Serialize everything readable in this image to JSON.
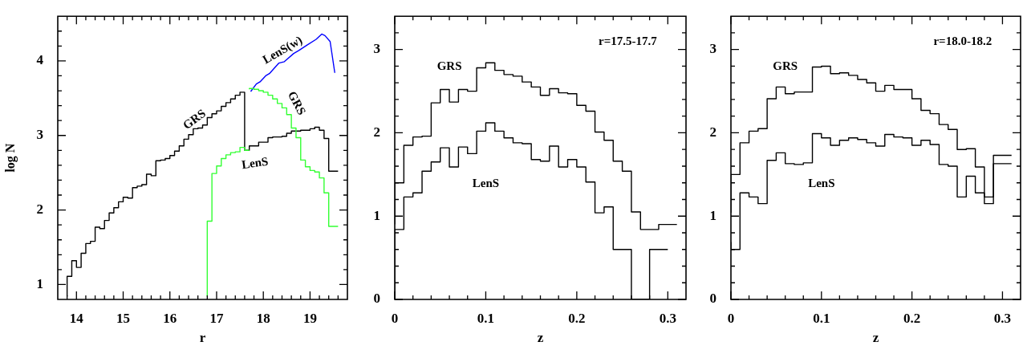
{
  "chart_data": [
    {
      "type": "step",
      "xlabel": "r",
      "ylabel": "log N",
      "xlim": [
        13.6,
        19.8
      ],
      "ylim": [
        0.8,
        4.6
      ],
      "xticks": [
        {
          "value": 13.8,
          "label": null
        },
        14,
        {
          "value": 14.2,
          "label": null
        },
        {
          "value": 14.4,
          "label": null
        },
        {
          "value": 14.6,
          "label": null
        },
        {
          "value": 14.8,
          "label": null
        },
        15,
        {
          "value": 15.2,
          "label": null
        },
        {
          "value": 15.4,
          "label": null
        },
        {
          "value": 15.6,
          "label": null
        },
        {
          "value": 15.8,
          "label": null
        },
        16,
        {
          "value": 16.2,
          "label": null
        },
        {
          "value": 16.4,
          "label": null
        },
        {
          "value": 16.6,
          "label": null
        },
        {
          "value": 16.8,
          "label": null
        },
        17,
        {
          "value": 17.2,
          "label": null
        },
        {
          "value": 17.4,
          "label": null
        },
        {
          "value": 17.6,
          "label": null
        },
        {
          "value": 17.8,
          "label": null
        },
        18,
        {
          "value": 18.2,
          "label": null
        },
        {
          "value": 18.4,
          "label": null
        },
        {
          "value": 18.6,
          "label": null
        },
        {
          "value": 18.8,
          "label": null
        },
        19,
        {
          "value": 19.2,
          "label": null
        },
        {
          "value": 19.4,
          "label": null
        },
        {
          "value": 19.6,
          "label": null
        }
      ],
      "yticks": [
        1,
        {
          "value": 1.2,
          "label": null
        },
        {
          "value": 1.4,
          "label": null
        },
        {
          "value": 1.6,
          "label": null
        },
        {
          "value": 1.8,
          "label": null
        },
        2,
        {
          "value": 2.2,
          "label": null
        },
        {
          "value": 2.4,
          "label": null
        },
        {
          "value": 2.6,
          "label": null
        },
        {
          "value": 2.8,
          "label": null
        },
        3,
        {
          "value": 3.2,
          "label": null
        },
        {
          "value": 3.4,
          "label": null
        },
        {
          "value": 3.6,
          "label": null
        },
        {
          "value": 3.8,
          "label": null
        },
        4,
        {
          "value": 4.2,
          "label": null
        },
        {
          "value": 4.4,
          "label": null
        }
      ],
      "series": [
        {
          "color": "#33ff33",
          "x": [
            17.7,
            17.8,
            17.9,
            18.0,
            18.1,
            18.2,
            18.3,
            18.4,
            18.5,
            18.6,
            18.7,
            18.8,
            18.9,
            19.0,
            19.1,
            19.2,
            19.3,
            19.4,
            19.5,
            19.6
          ],
          "values": [
            3.62,
            3.63,
            3.62,
            3.6,
            3.58,
            3.54,
            3.49,
            3.43,
            3.37,
            3.28,
            3.1,
            2.97,
            2.67,
            2.58,
            2.53,
            2.51,
            2.43,
            2.23,
            1.78,
            1.78
          ]
        },
        {
          "color": "#33ff33",
          "x": [
            16.8,
            16.9,
            17.0,
            17.1,
            17.2,
            17.3,
            17.4,
            17.5,
            17.6,
            17.7
          ],
          "values": [
            0.84,
            1.85,
            2.49,
            2.59,
            2.69,
            2.74,
            2.77,
            2.78,
            2.84,
            2.8
          ]
        },
        {
          "color": "#000000",
          "x": [
            13.8,
            13.9,
            14.0,
            14.1,
            14.2,
            14.3,
            14.4,
            14.5,
            14.6,
            14.7,
            14.8,
            14.9,
            15.0,
            15.1,
            15.2,
            15.3,
            15.4,
            15.5,
            15.6,
            15.7,
            15.8,
            15.9,
            16.0,
            16.1,
            16.2,
            16.3,
            16.4,
            16.5,
            16.6,
            16.7,
            16.8,
            16.9,
            17.0,
            17.1,
            17.2,
            17.3,
            17.4,
            17.5,
            17.6,
            17.7,
            17.8,
            17.9,
            18.0,
            18.1,
            18.2,
            18.3,
            18.4,
            18.5,
            18.6,
            18.7,
            18.8,
            18.9,
            19.0,
            19.1,
            19.2,
            19.3,
            19.4,
            19.5,
            19.6
          ],
          "values": [
            0.84,
            1.11,
            1.32,
            1.23,
            1.42,
            1.55,
            1.58,
            1.77,
            1.75,
            1.86,
            1.96,
            2.03,
            2.11,
            2.17,
            2.16,
            2.3,
            2.32,
            2.34,
            2.48,
            2.46,
            2.66,
            2.67,
            2.69,
            2.73,
            2.79,
            2.86,
            2.95,
            3.01,
            3.09,
            3.1,
            3.14,
            3.24,
            3.29,
            3.33,
            3.39,
            3.44,
            3.49,
            3.54,
            3.58,
            2.8,
            2.86,
            2.86,
            2.91,
            2.91,
            2.97,
            2.98,
            2.98,
            2.99,
            3.03,
            3.06,
            3.06,
            3.07,
            3.07,
            3.09,
            3.11,
            3.07,
            2.96,
            2.52,
            2.52
          ]
        },
        {
          "type": "line",
          "color": "#0000ff",
          "x": [
            17.73,
            17.85,
            17.93,
            18.05,
            18.13,
            18.33,
            18.45,
            18.65,
            18.76,
            18.93,
            19.13,
            19.25,
            19.32,
            19.43,
            19.53
          ],
          "values": [
            3.59,
            3.69,
            3.72,
            3.8,
            3.83,
            3.97,
            3.99,
            4.1,
            4.14,
            4.21,
            4.29,
            4.36,
            4.34,
            4.26,
            3.84
          ]
        }
      ],
      "annotations": [
        "GRS",
        "LenS(w)",
        "GRS",
        "LenS"
      ]
    },
    {
      "type": "step",
      "xlabel": "z",
      "xlim": [
        0,
        0.32
      ],
      "ylim": [
        0,
        3.4
      ],
      "xticks": [
        0,
        {
          "value": 0.02,
          "label": null
        },
        {
          "value": 0.04,
          "label": null
        },
        {
          "value": 0.06,
          "label": null
        },
        {
          "value": 0.08,
          "label": null
        },
        0.1,
        {
          "value": 0.12,
          "label": null
        },
        {
          "value": 0.14,
          "label": null
        },
        {
          "value": 0.16,
          "label": null
        },
        {
          "value": 0.18,
          "label": null
        },
        0.2,
        {
          "value": 0.22,
          "label": null
        },
        {
          "value": 0.24,
          "label": null
        },
        {
          "value": 0.26,
          "label": null
        },
        {
          "value": 0.28,
          "label": null
        },
        0.3
      ],
      "yticks": [
        0,
        {
          "value": 0.2,
          "label": null
        },
        {
          "value": 0.4,
          "label": null
        },
        {
          "value": 0.6,
          "label": null
        },
        {
          "value": 0.8,
          "label": null
        },
        1,
        {
          "value": 1.2,
          "label": null
        },
        {
          "value": 1.4,
          "label": null
        },
        {
          "value": 1.6,
          "label": null
        },
        {
          "value": 1.8,
          "label": null
        },
        2,
        {
          "value": 2.2,
          "label": null
        },
        {
          "value": 2.4,
          "label": null
        },
        {
          "value": 2.6,
          "label": null
        },
        {
          "value": 2.8,
          "label": null
        },
        3,
        {
          "value": 3.2,
          "label": null
        }
      ],
      "series": [
        {
          "color": "#000000",
          "x": [
            0,
            0.01,
            0.02,
            0.03,
            0.04,
            0.05,
            0.06,
            0.07,
            0.08,
            0.09,
            0.1,
            0.11,
            0.12,
            0.13,
            0.14,
            0.15,
            0.16,
            0.17,
            0.18,
            0.19,
            0.2,
            0.21,
            0.22,
            0.23,
            0.24,
            0.25,
            0.26,
            0.27,
            0.28,
            0.29,
            0.3,
            0.31
          ],
          "values": [
            0.9,
            1.4,
            1.85,
            1.95,
            1.96,
            2.36,
            2.52,
            2.37,
            2.52,
            2.5,
            2.78,
            2.84,
            2.75,
            2.7,
            2.68,
            2.61,
            2.55,
            2.45,
            2.53,
            2.48,
            2.47,
            2.33,
            2.26,
            2.01,
            1.91,
            1.66,
            1.54,
            1.05,
            0.84,
            0.84,
            0.9,
            0.9
          ]
        },
        {
          "color": "#000000",
          "x": [
            0,
            0.01,
            0.02,
            0.03,
            0.04,
            0.05,
            0.06,
            0.07,
            0.08,
            0.09,
            0.1,
            0.11,
            0.12,
            0.13,
            0.14,
            0.15,
            0.16,
            0.17,
            0.18,
            0.19,
            0.2,
            0.21,
            0.22,
            0.23,
            0.24,
            0.25,
            0.26,
            0.27,
            0.28,
            0.29,
            0.3
          ],
          "values": [
            0,
            0.84,
            1.23,
            1.28,
            1.54,
            1.65,
            1.82,
            1.59,
            1.83,
            1.75,
            2.02,
            2.12,
            2.02,
            1.94,
            1.88,
            1.87,
            1.68,
            1.66,
            1.84,
            1.59,
            1.68,
            1.59,
            1.41,
            1.04,
            1.11,
            0.6,
            0.6,
            0,
            0,
            0.6,
            0.6
          ]
        }
      ],
      "annotations": [
        "r=17.5-17.7",
        "GRS",
        "LenS"
      ]
    },
    {
      "type": "step",
      "xlabel": "z",
      "xlim": [
        0,
        0.32
      ],
      "ylim": [
        0,
        3.4
      ],
      "xticks": [
        0,
        {
          "value": 0.02,
          "label": null
        },
        {
          "value": 0.04,
          "label": null
        },
        {
          "value": 0.06,
          "label": null
        },
        {
          "value": 0.08,
          "label": null
        },
        0.1,
        {
          "value": 0.12,
          "label": null
        },
        {
          "value": 0.14,
          "label": null
        },
        {
          "value": 0.16,
          "label": null
        },
        {
          "value": 0.18,
          "label": null
        },
        0.2,
        {
          "value": 0.22,
          "label": null
        },
        {
          "value": 0.24,
          "label": null
        },
        {
          "value": 0.26,
          "label": null
        },
        {
          "value": 0.28,
          "label": null
        },
        0.3
      ],
      "yticks": [
        0,
        {
          "value": 0.2,
          "label": null
        },
        {
          "value": 0.4,
          "label": null
        },
        {
          "value": 0.6,
          "label": null
        },
        {
          "value": 0.8,
          "label": null
        },
        1,
        {
          "value": 1.2,
          "label": null
        },
        {
          "value": 1.4,
          "label": null
        },
        {
          "value": 1.6,
          "label": null
        },
        {
          "value": 1.8,
          "label": null
        },
        2,
        {
          "value": 2.2,
          "label": null
        },
        {
          "value": 2.4,
          "label": null
        },
        {
          "value": 2.6,
          "label": null
        },
        {
          "value": 2.8,
          "label": null
        },
        3,
        {
          "value": 3.2,
          "label": null
        }
      ],
      "series": [
        {
          "color": "#000000",
          "x": [
            0,
            0.01,
            0.02,
            0.03,
            0.04,
            0.05,
            0.06,
            0.07,
            0.08,
            0.09,
            0.1,
            0.11,
            0.12,
            0.13,
            0.14,
            0.15,
            0.16,
            0.17,
            0.18,
            0.19,
            0.2,
            0.21,
            0.22,
            0.23,
            0.24,
            0.25,
            0.26,
            0.27,
            0.28,
            0.29,
            0.3,
            0.31
          ],
          "values": [
            1.04,
            1.5,
            1.88,
            2.02,
            2.05,
            2.41,
            2.55,
            2.47,
            2.49,
            2.49,
            2.79,
            2.8,
            2.71,
            2.72,
            2.69,
            2.64,
            2.6,
            2.5,
            2.57,
            2.52,
            2.52,
            2.41,
            2.27,
            2.23,
            2.1,
            2.04,
            1.8,
            1.81,
            1.59,
            1.23,
            1.73,
            1.73
          ]
        },
        {
          "color": "#000000",
          "x": [
            0,
            0.01,
            0.02,
            0.03,
            0.04,
            0.05,
            0.06,
            0.07,
            0.08,
            0.09,
            0.1,
            0.11,
            0.12,
            0.13,
            0.14,
            0.15,
            0.16,
            0.17,
            0.18,
            0.19,
            0.2,
            0.21,
            0.22,
            0.23,
            0.24,
            0.25,
            0.26,
            0.27,
            0.28,
            0.29,
            0.3,
            0.31
          ],
          "values": [
            0.69,
            0.6,
            1.28,
            1.23,
            1.15,
            1.67,
            1.76,
            1.63,
            1.62,
            1.64,
            1.99,
            1.94,
            1.85,
            1.91,
            1.94,
            1.92,
            1.88,
            1.84,
            1.98,
            1.95,
            1.94,
            1.85,
            1.91,
            1.86,
            1.62,
            1.6,
            1.23,
            1.48,
            1.28,
            1.15,
            1.63,
            1.63
          ]
        }
      ],
      "annotations": [
        "r=18.0-18.2",
        "GRS",
        "LenS"
      ]
    }
  ]
}
